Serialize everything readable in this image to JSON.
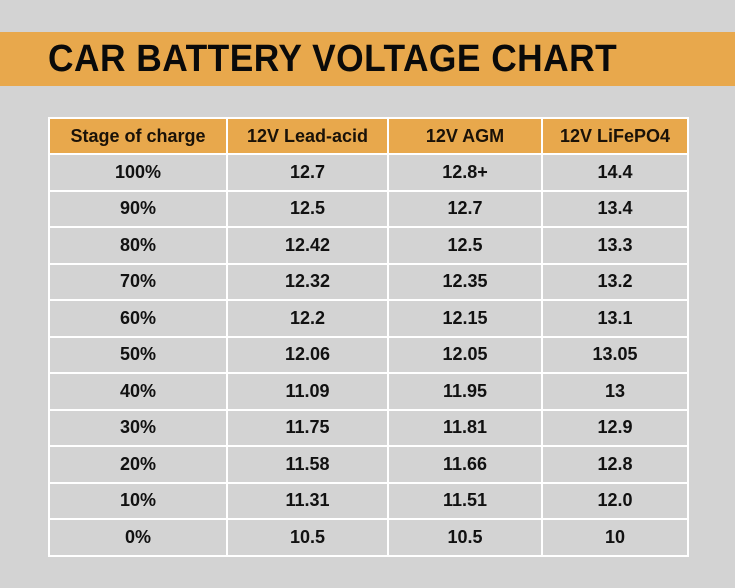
{
  "title": "CAR BATTERY VOLTAGE CHART",
  "colors": {
    "accent": "#e8a84c",
    "background": "#d3d3d3",
    "grid": "#ffffff",
    "text": "#111111"
  },
  "table": {
    "headers": [
      "Stage of charge",
      "12V Lead-acid",
      "12V AGM",
      "12V LiFePO4"
    ],
    "rows": [
      [
        "100%",
        "12.7",
        "12.8+",
        "14.4"
      ],
      [
        "90%",
        "12.5",
        "12.7",
        "13.4"
      ],
      [
        "80%",
        "12.42",
        "12.5",
        "13.3"
      ],
      [
        "70%",
        "12.32",
        "12.35",
        "13.2"
      ],
      [
        "60%",
        "12.2",
        "12.15",
        "13.1"
      ],
      [
        "50%",
        "12.06",
        "12.05",
        "13.05"
      ],
      [
        "40%",
        "11.09",
        "11.95",
        "13"
      ],
      [
        "30%",
        "11.75",
        "11.81",
        "12.9"
      ],
      [
        "20%",
        "11.58",
        "11.66",
        "12.8"
      ],
      [
        "10%",
        "11.31",
        "11.51",
        "12.0"
      ],
      [
        "0%",
        "10.5",
        "10.5",
        "10"
      ]
    ]
  }
}
